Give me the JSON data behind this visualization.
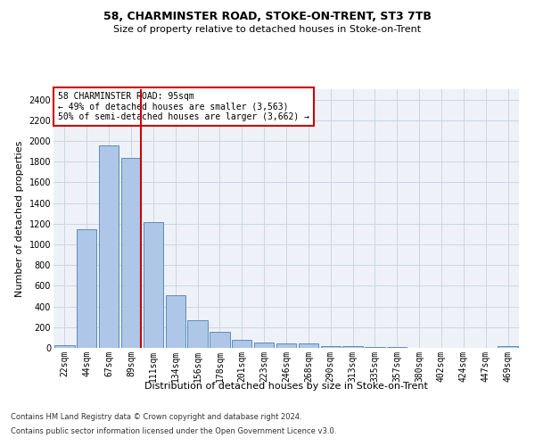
{
  "title_line1": "58, CHARMINSTER ROAD, STOKE-ON-TRENT, ST3 7TB",
  "title_line2": "Size of property relative to detached houses in Stoke-on-Trent",
  "xlabel": "Distribution of detached houses by size in Stoke-on-Trent",
  "ylabel": "Number of detached properties",
  "footnote1": "Contains HM Land Registry data © Crown copyright and database right 2024.",
  "footnote2": "Contains public sector information licensed under the Open Government Licence v3.0.",
  "bar_labels": [
    "22sqm",
    "44sqm",
    "67sqm",
    "89sqm",
    "111sqm",
    "134sqm",
    "156sqm",
    "178sqm",
    "201sqm",
    "223sqm",
    "246sqm",
    "268sqm",
    "290sqm",
    "313sqm",
    "335sqm",
    "357sqm",
    "380sqm",
    "402sqm",
    "424sqm",
    "447sqm",
    "469sqm"
  ],
  "bar_values": [
    30,
    1150,
    1960,
    1840,
    1215,
    510,
    265,
    155,
    80,
    50,
    45,
    40,
    20,
    20,
    10,
    10,
    0,
    0,
    0,
    0,
    20
  ],
  "bar_color": "#aec6e8",
  "bar_edge_color": "#5b8db8",
  "grid_color": "#ccd5e0",
  "background_color": "#eef2f8",
  "annotation_box_color": "#cc0000",
  "annotation_line1": "58 CHARMINSTER ROAD: 95sqm",
  "annotation_line2": "← 49% of detached houses are smaller (3,563)",
  "annotation_line3": "50% of semi-detached houses are larger (3,662) →",
  "vline_color": "#cc0000",
  "ylim": [
    0,
    2500
  ],
  "yticks": [
    0,
    200,
    400,
    600,
    800,
    1000,
    1200,
    1400,
    1600,
    1800,
    2000,
    2200,
    2400
  ],
  "title_fontsize": 9,
  "subtitle_fontsize": 8,
  "ylabel_fontsize": 8,
  "xlabel_fontsize": 8,
  "tick_fontsize": 7,
  "annot_fontsize": 7,
  "footnote_fontsize": 6
}
